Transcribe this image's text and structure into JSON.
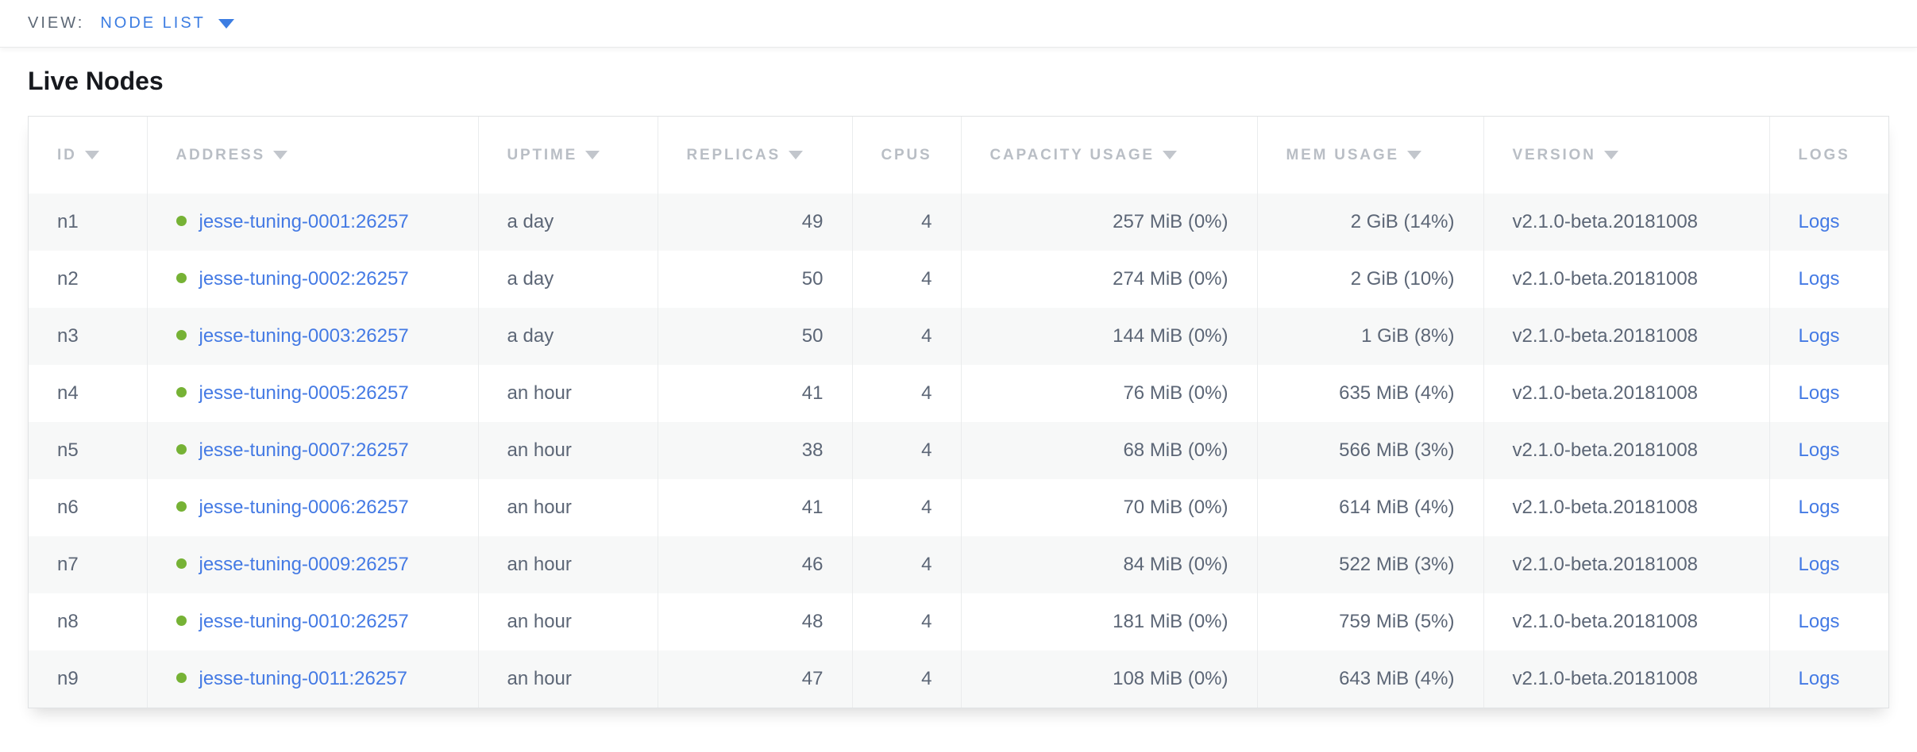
{
  "view_bar": {
    "label": "VIEW:",
    "selected_view": "NODE LIST"
  },
  "page": {
    "title": "Live Nodes"
  },
  "colors": {
    "link_blue": "#3c7de2",
    "healthy_green": "#76b235",
    "header_gray": "#b9bec5",
    "text_slate": "#5c6676"
  },
  "table": {
    "columns": [
      {
        "key": "id",
        "label": "ID",
        "sorted": true,
        "align": "left"
      },
      {
        "key": "address",
        "label": "ADDRESS",
        "sorted": true,
        "align": "left"
      },
      {
        "key": "uptime",
        "label": "UPTIME",
        "sorted": true,
        "align": "left"
      },
      {
        "key": "replicas",
        "label": "REPLICAS",
        "sorted": true,
        "align": "right"
      },
      {
        "key": "cpus",
        "label": "CPUS",
        "sorted": false,
        "align": "right"
      },
      {
        "key": "capacity",
        "label": "CAPACITY USAGE",
        "sorted": true,
        "align": "right"
      },
      {
        "key": "mem",
        "label": "MEM USAGE",
        "sorted": true,
        "align": "right"
      },
      {
        "key": "version",
        "label": "VERSION",
        "sorted": true,
        "align": "left"
      },
      {
        "key": "logs",
        "label": "LOGS",
        "sorted": false,
        "align": "left"
      }
    ],
    "rows": [
      {
        "id": "n1",
        "status": "healthy",
        "address": "jesse-tuning-0001:26257",
        "uptime": "a day",
        "replicas": "49",
        "cpus": "4",
        "capacity": "257 MiB (0%)",
        "mem": "2 GiB (14%)",
        "version": "v2.1.0-beta.20181008",
        "logs": "Logs"
      },
      {
        "id": "n2",
        "status": "healthy",
        "address": "jesse-tuning-0002:26257",
        "uptime": "a day",
        "replicas": "50",
        "cpus": "4",
        "capacity": "274 MiB (0%)",
        "mem": "2 GiB (10%)",
        "version": "v2.1.0-beta.20181008",
        "logs": "Logs"
      },
      {
        "id": "n3",
        "status": "healthy",
        "address": "jesse-tuning-0003:26257",
        "uptime": "a day",
        "replicas": "50",
        "cpus": "4",
        "capacity": "144 MiB (0%)",
        "mem": "1 GiB (8%)",
        "version": "v2.1.0-beta.20181008",
        "logs": "Logs"
      },
      {
        "id": "n4",
        "status": "healthy",
        "address": "jesse-tuning-0005:26257",
        "uptime": "an hour",
        "replicas": "41",
        "cpus": "4",
        "capacity": "76 MiB (0%)",
        "mem": "635 MiB (4%)",
        "version": "v2.1.0-beta.20181008",
        "logs": "Logs"
      },
      {
        "id": "n5",
        "status": "healthy",
        "address": "jesse-tuning-0007:26257",
        "uptime": "an hour",
        "replicas": "38",
        "cpus": "4",
        "capacity": "68 MiB (0%)",
        "mem": "566 MiB (3%)",
        "version": "v2.1.0-beta.20181008",
        "logs": "Logs"
      },
      {
        "id": "n6",
        "status": "healthy",
        "address": "jesse-tuning-0006:26257",
        "uptime": "an hour",
        "replicas": "41",
        "cpus": "4",
        "capacity": "70 MiB (0%)",
        "mem": "614 MiB (4%)",
        "version": "v2.1.0-beta.20181008",
        "logs": "Logs"
      },
      {
        "id": "n7",
        "status": "healthy",
        "address": "jesse-tuning-0009:26257",
        "uptime": "an hour",
        "replicas": "46",
        "cpus": "4",
        "capacity": "84 MiB (0%)",
        "mem": "522 MiB (3%)",
        "version": "v2.1.0-beta.20181008",
        "logs": "Logs"
      },
      {
        "id": "n8",
        "status": "healthy",
        "address": "jesse-tuning-0010:26257",
        "uptime": "an hour",
        "replicas": "48",
        "cpus": "4",
        "capacity": "181 MiB (0%)",
        "mem": "759 MiB (5%)",
        "version": "v2.1.0-beta.20181008",
        "logs": "Logs"
      },
      {
        "id": "n9",
        "status": "healthy",
        "address": "jesse-tuning-0011:26257",
        "uptime": "an hour",
        "replicas": "47",
        "cpus": "4",
        "capacity": "108 MiB (0%)",
        "mem": "643 MiB (4%)",
        "version": "v2.1.0-beta.20181008",
        "logs": "Logs"
      }
    ]
  }
}
